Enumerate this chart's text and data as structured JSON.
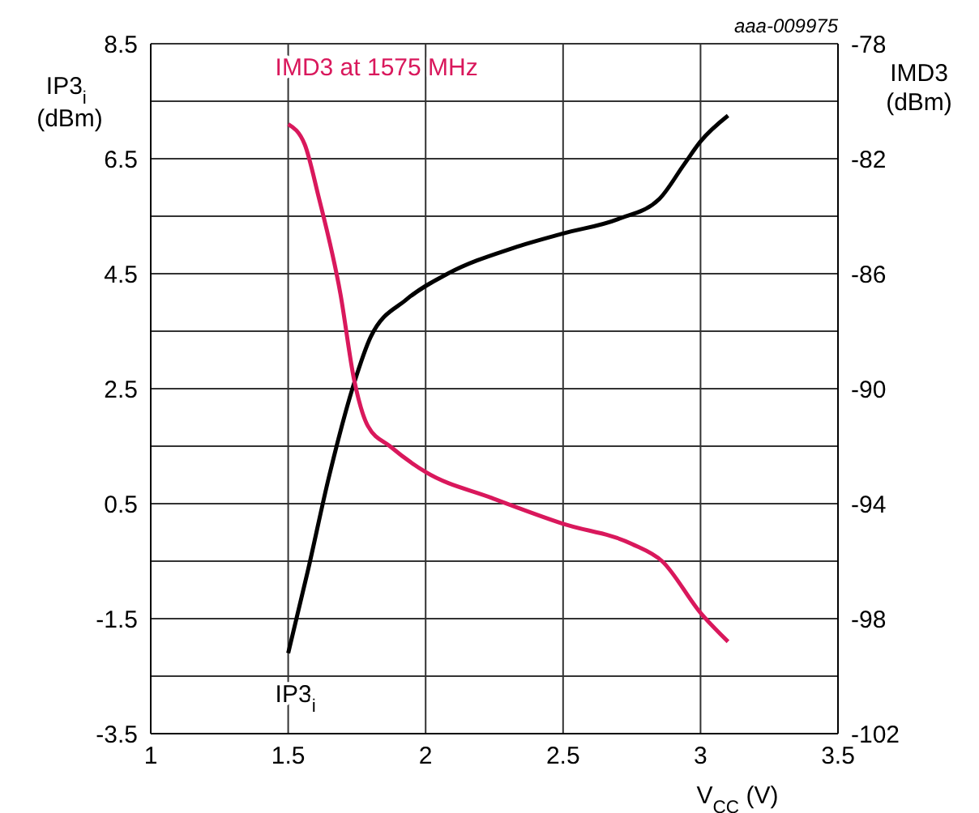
{
  "chart_data": {
    "type": "line",
    "xlabel": "V$_{CC}$ (V)",
    "ylabel": "IP3$_{i}$ (dBm)",
    "y2label": "IMD3 (dBm)",
    "annotations": [
      "aaa-009975"
    ],
    "xlim": [
      1,
      3.5
    ],
    "xticks": [
      1,
      1.5,
      2,
      2.5,
      3,
      3.5
    ],
    "ylim": [
      -3.5,
      8.5
    ],
    "yticks": [
      -3.5,
      {
        "value": -2.5,
        "label": null
      },
      -1.5,
      {
        "value": -0.5,
        "label": null
      },
      0.5,
      {
        "value": 1.5,
        "label": null
      },
      2.5,
      {
        "value": 3.5,
        "label": null
      },
      4.5,
      {
        "value": 5.5,
        "label": null
      },
      6.5,
      {
        "value": 7.5,
        "label": null
      },
      8.5
    ],
    "y2lim": [
      -102,
      -78
    ],
    "y2ticks": [
      -102,
      -98,
      -94,
      -90,
      -86,
      -82,
      -78
    ],
    "grid": true,
    "marker": "none",
    "line_style": "solid",
    "series": [
      {
        "name": "IP3$_{i}$",
        "color": "#000000",
        "x": [
          1.5,
          1.57,
          1.65,
          1.74,
          1.8,
          1.93,
          2.08,
          2.32,
          2.5,
          2.7,
          2.85,
          2.94,
          3.0,
          3.1
        ],
        "values": [
          -2.1,
          -0.7,
          1.0,
          2.6,
          3.4,
          4.05,
          4.5,
          4.95,
          5.2,
          5.45,
          5.8,
          6.4,
          6.8,
          7.25
        ]
      },
      {
        "name": "IMD3 at 1575 MHz",
        "color": "#d9185c",
        "axis": "y2",
        "x": [
          1.5,
          1.56,
          1.61,
          1.69,
          1.74,
          1.79,
          1.87,
          2.0,
          2.24,
          2.5,
          2.75,
          2.86,
          3.0,
          3.1
        ],
        "values": [
          -80.8,
          -81.5,
          -83.3,
          -86.7,
          -89.7,
          -91.3,
          -92.0,
          -92.9,
          -93.8,
          -94.7,
          -95.4,
          -96.0,
          -97.8,
          -98.8
        ]
      }
    ]
  }
}
